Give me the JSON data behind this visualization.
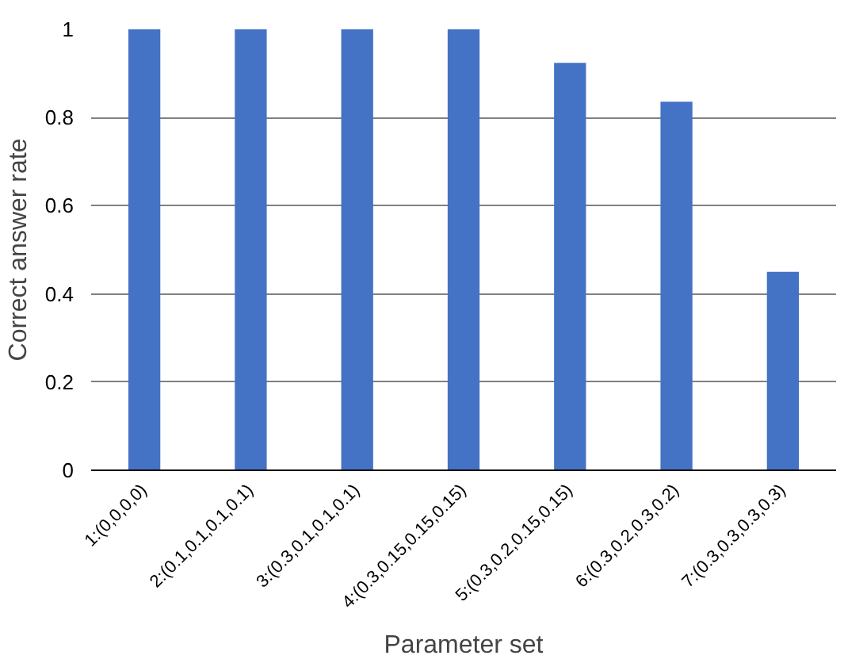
{
  "chart_data": {
    "type": "bar",
    "xlabel": "Parameter set",
    "ylabel": "Correct answer rate",
    "categories": [
      "1:(0,0,0,0)",
      "2:(0.1,0.1,0.1,0.1)",
      "3:(0.3,0.1,0.1,0.1)",
      "4:(0.3,0.15,0.15,0.15)",
      "5:(0.3,0.2,0.15,0.15)",
      "6:(0.3,0.2,0.3,0.2)",
      "7:(0.3,0.3,0.3,0.3)"
    ],
    "values": [
      1,
      1,
      1,
      1,
      0.924,
      0.836,
      0.45
    ],
    "color": "#4472c4",
    "ylim": [
      0,
      1
    ],
    "yticks": [
      0,
      0.2,
      0.4,
      0.6,
      0.8,
      1
    ],
    "grid": "y"
  }
}
